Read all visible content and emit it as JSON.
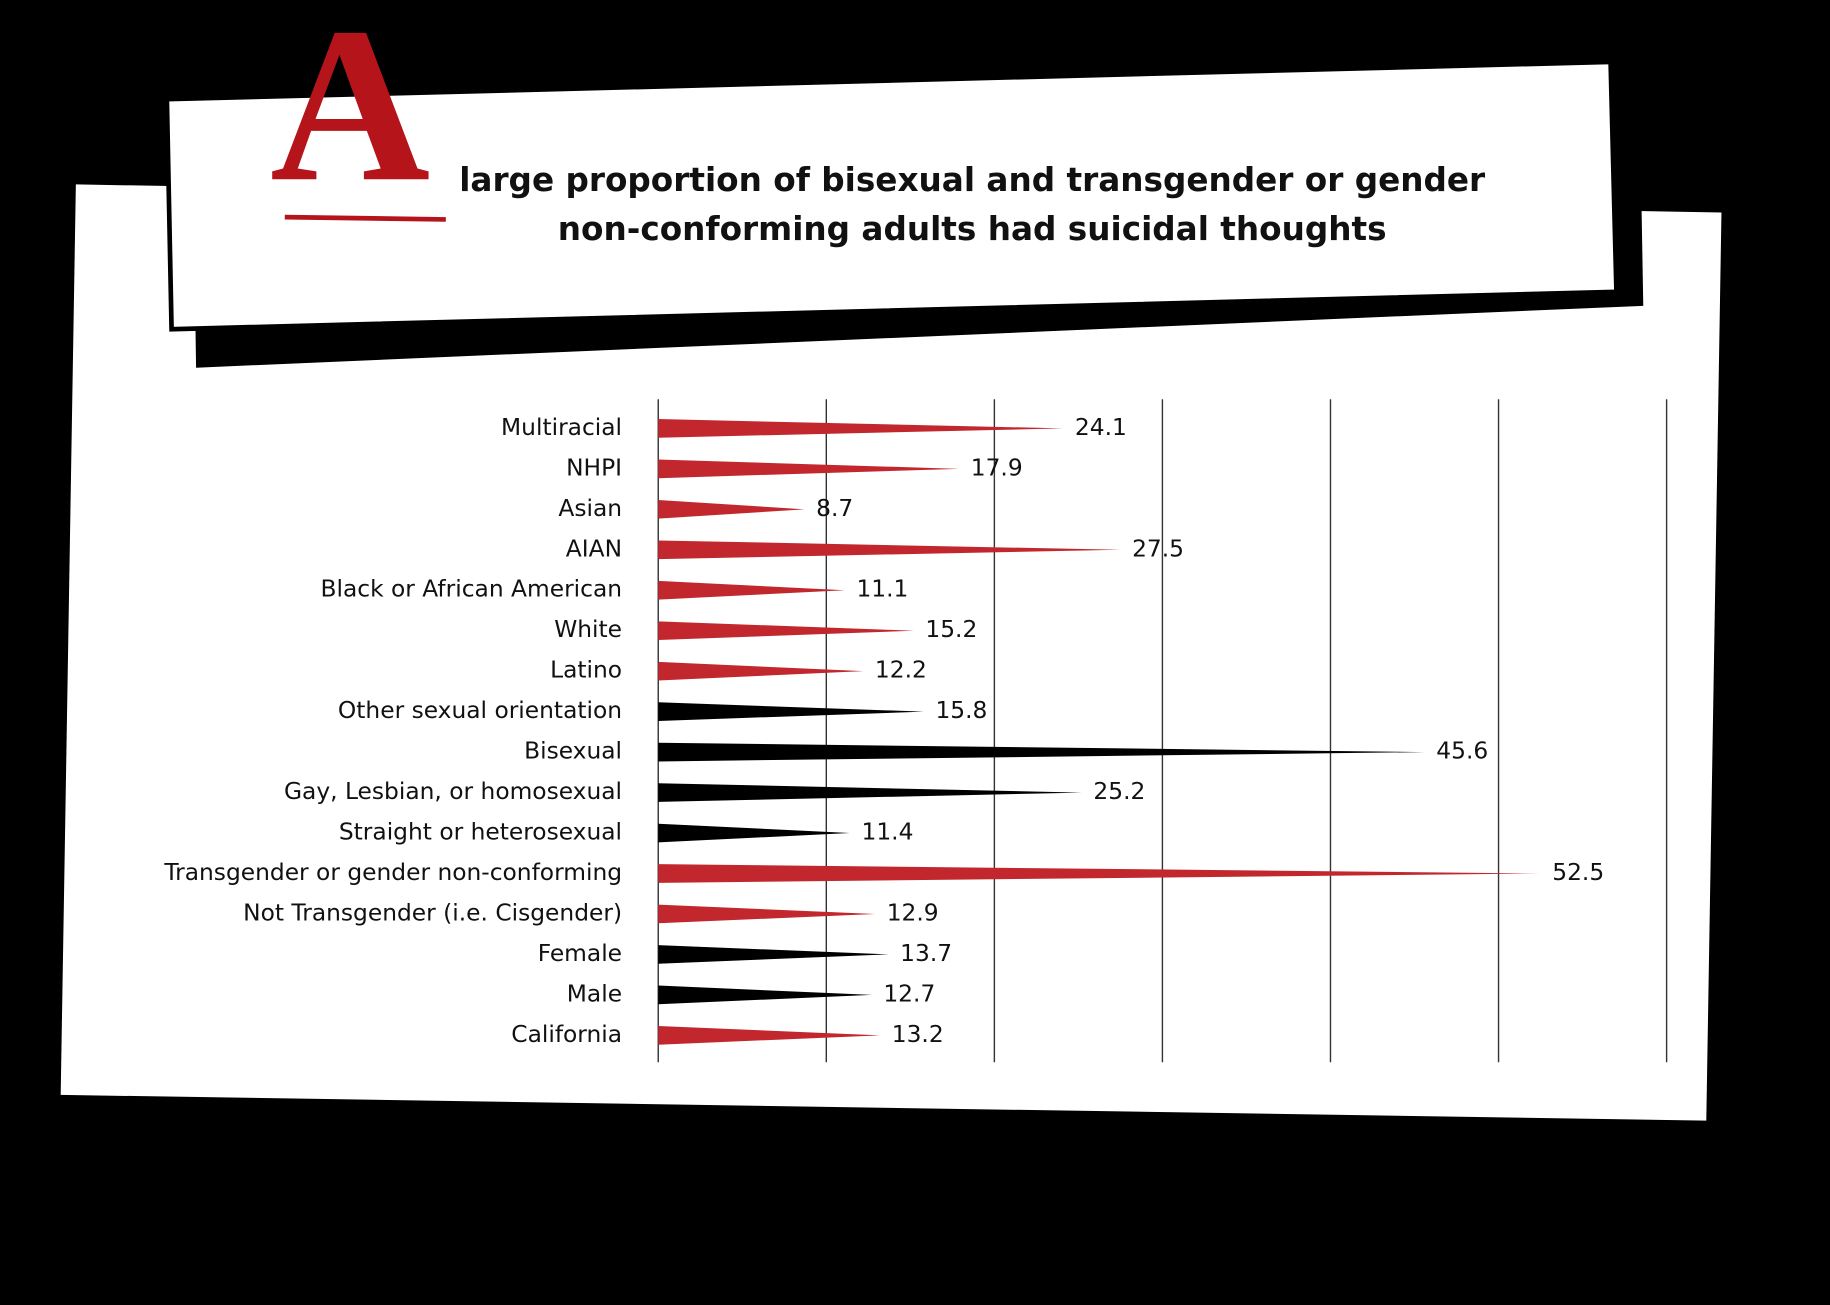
{
  "chart_data": {
    "type": "spike-bar",
    "title_initial": "A",
    "title": [
      "large proportion of bisexual and transgender or gender",
      "non-conforming adults had suicidal thoughts"
    ],
    "categories": [
      "Multiracial",
      "NHPI",
      "Asian",
      "AIAN",
      "Black or African American",
      "White",
      "Latino",
      "Other sexual orientation",
      "Bisexual",
      "Gay, Lesbian, or homosexual",
      "Straight or heterosexual",
      "Transgender or gender non-conforming",
      "Not Transgender (i.e. Cisgender)",
      "Female",
      "Male",
      "California"
    ],
    "values": [
      24.1,
      17.9,
      8.7,
      27.5,
      11.1,
      15.2,
      12.2,
      15.8,
      45.6,
      25.2,
      11.4,
      52.5,
      12.9,
      13.7,
      12.7,
      13.2
    ],
    "colors": [
      "#c1272d",
      "#c1272d",
      "#c1272d",
      "#c1272d",
      "#c1272d",
      "#c1272d",
      "#c1272d",
      "#000000",
      "#000000",
      "#000000",
      "#000000",
      "#c1272d",
      "#c1272d",
      "#000000",
      "#000000",
      "#c1272d"
    ],
    "xlim": [
      0,
      60
    ],
    "xticks": [
      0,
      10,
      20,
      30,
      40,
      50,
      60
    ],
    "grid": true
  }
}
